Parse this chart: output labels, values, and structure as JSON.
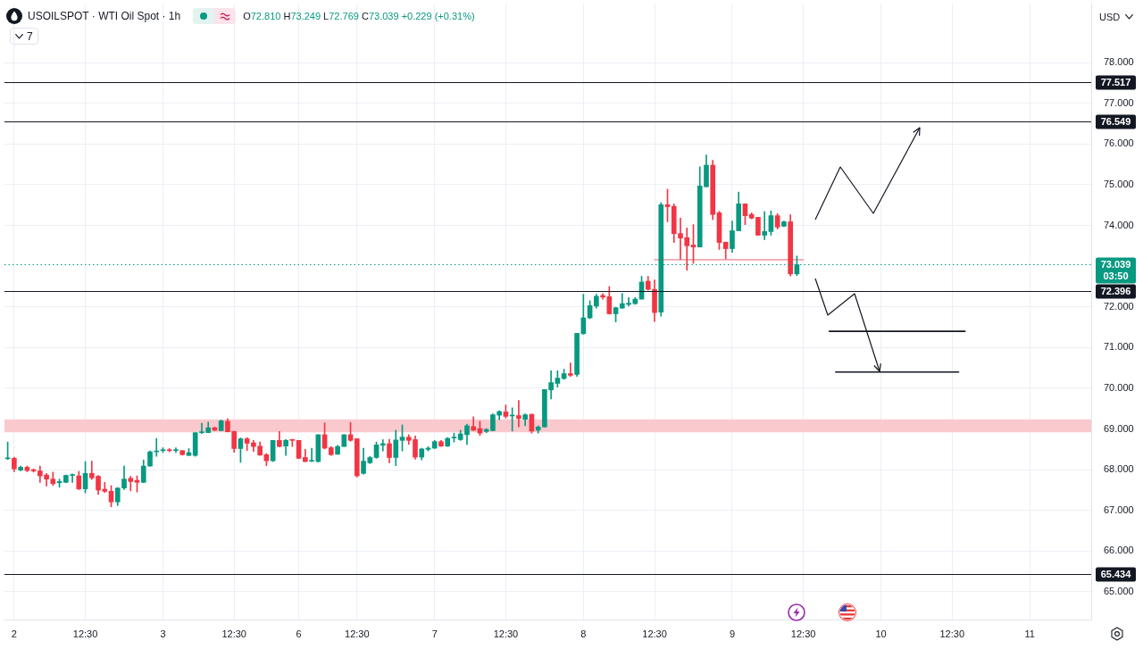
{
  "chart_data": {
    "type": "candlestick",
    "title": "USOILSPOT · WTI Oil Spot · 1h",
    "subtitle": "O72.810 H73.249 L72.769 C73.039 +0.229 (+0.31%)",
    "ylabel": "USD",
    "annotations": [
      "7"
    ],
    "categories": [
      null,
      "2",
      null,
      null,
      null,
      null,
      null,
      null,
      null,
      null,
      null,
      null,
      "12:30",
      null,
      null,
      null,
      null,
      null,
      null,
      null,
      null,
      null,
      null,
      null,
      "3",
      null,
      null,
      null,
      null,
      null,
      null,
      null,
      null,
      null,
      null,
      "12:30",
      null,
      null,
      null,
      null,
      null,
      null,
      null,
      null,
      null,
      "6",
      null,
      null,
      null,
      null,
      null,
      null,
      null,
      null,
      "12:30",
      null,
      null,
      null,
      null,
      null,
      null,
      null,
      null,
      null,
      null,
      null,
      "7",
      null,
      null,
      null,
      null,
      null,
      null,
      null,
      null,
      null,
      null,
      "12:30",
      null,
      null,
      null,
      null,
      null,
      null,
      null,
      null,
      null,
      null,
      null,
      "8",
      null,
      null,
      null,
      null,
      null,
      null,
      null,
      null,
      null,
      null,
      "12:30",
      null,
      null,
      null,
      null,
      null,
      null,
      null,
      null,
      null,
      null,
      null,
      "9",
      null,
      null,
      null,
      null,
      null,
      null,
      null,
      null,
      null,
      null,
      "12:30",
      null,
      null,
      null,
      null,
      null,
      null,
      null,
      null,
      null,
      null,
      null,
      "10",
      null,
      null,
      null,
      null,
      null,
      null,
      null,
      null,
      null,
      null,
      "12:30",
      null,
      null,
      null,
      null,
      null,
      null,
      null,
      null,
      null,
      null,
      null,
      "11",
      null,
      null,
      null,
      null,
      null,
      null,
      null,
      null,
      null
    ],
    "series": [
      {
        "type": "candlestick",
        "ohlc": [
          [
            68.27,
            68.68,
            68.25,
            68.29
          ],
          [
            68.28,
            68.31,
            67.95,
            68.02
          ],
          [
            67.99,
            68.09,
            67.97,
            68.06
          ],
          [
            68.06,
            68.09,
            67.95,
            67.98
          ],
          [
            68.0,
            68.02,
            67.94,
            67.97
          ],
          [
            67.97,
            68.09,
            67.69,
            67.85
          ],
          [
            67.87,
            67.91,
            67.6,
            67.77
          ],
          [
            67.77,
            67.94,
            67.61,
            67.66
          ],
          [
            67.68,
            67.77,
            67.57,
            67.71
          ],
          [
            67.69,
            67.87,
            67.68,
            67.86
          ],
          [
            67.86,
            67.9,
            67.69,
            67.87
          ],
          [
            67.85,
            67.96,
            67.51,
            67.53
          ],
          [
            67.53,
            68.2,
            67.43,
            67.91
          ],
          [
            67.91,
            68.21,
            67.76,
            67.8
          ],
          [
            67.84,
            67.86,
            67.39,
            67.5
          ],
          [
            67.52,
            67.69,
            67.44,
            67.47
          ],
          [
            67.47,
            67.61,
            67.09,
            67.21
          ],
          [
            67.21,
            67.56,
            67.12,
            67.55
          ],
          [
            67.55,
            68.09,
            67.51,
            67.77
          ],
          [
            67.79,
            67.84,
            67.48,
            67.71
          ],
          [
            67.74,
            67.85,
            67.45,
            67.69
          ],
          [
            67.69,
            68.24,
            67.68,
            68.09
          ],
          [
            68.09,
            68.46,
            68.08,
            68.44
          ],
          [
            68.44,
            68.77,
            68.33,
            68.45
          ],
          [
            68.47,
            68.54,
            68.42,
            68.48
          ],
          [
            68.48,
            68.52,
            68.44,
            68.47
          ],
          [
            68.47,
            68.54,
            68.42,
            68.48
          ],
          [
            68.47,
            68.47,
            68.36,
            68.37
          ],
          [
            68.35,
            68.52,
            68.35,
            68.42
          ],
          [
            68.35,
            68.91,
            68.33,
            68.91
          ],
          [
            68.91,
            69.14,
            68.89,
            68.92
          ],
          [
            68.91,
            69.17,
            68.91,
            69.03
          ],
          [
            69.03,
            69.05,
            68.96,
            68.97
          ],
          [
            68.96,
            69.22,
            68.96,
            69.2
          ],
          [
            69.19,
            69.25,
            68.93,
            68.93
          ],
          [
            68.94,
            68.95,
            68.43,
            68.52
          ],
          [
            68.52,
            68.78,
            68.18,
            68.76
          ],
          [
            68.76,
            68.79,
            68.47,
            68.65
          ],
          [
            68.66,
            68.72,
            68.45,
            68.57
          ],
          [
            68.58,
            68.68,
            68.35,
            68.36
          ],
          [
            68.37,
            68.4,
            68.1,
            68.22
          ],
          [
            68.22,
            68.72,
            68.2,
            68.72
          ],
          [
            68.72,
            68.94,
            68.56,
            68.57
          ],
          [
            68.58,
            68.74,
            68.35,
            68.72
          ],
          [
            68.73,
            68.75,
            68.57,
            68.72
          ],
          [
            68.72,
            68.72,
            68.27,
            68.28
          ],
          [
            68.3,
            68.5,
            68.2,
            68.2
          ],
          [
            68.21,
            68.53,
            68.2,
            68.22
          ],
          [
            68.2,
            68.86,
            68.19,
            68.86
          ],
          [
            68.86,
            69.15,
            68.51,
            68.53
          ],
          [
            68.54,
            68.57,
            68.35,
            68.37
          ],
          [
            68.38,
            68.6,
            68.38,
            68.57
          ],
          [
            68.57,
            68.86,
            68.57,
            68.86
          ],
          [
            68.86,
            69.16,
            68.7,
            68.72
          ],
          [
            68.76,
            68.76,
            67.82,
            67.85
          ],
          [
            67.91,
            68.53,
            67.89,
            68.21
          ],
          [
            68.17,
            68.33,
            68.15,
            68.3
          ],
          [
            68.3,
            68.68,
            68.28,
            68.61
          ],
          [
            68.6,
            68.74,
            68.46,
            68.64
          ],
          [
            68.64,
            68.75,
            68.17,
            68.3
          ],
          [
            68.3,
            68.97,
            68.1,
            68.73
          ],
          [
            68.72,
            69.1,
            68.46,
            68.8
          ],
          [
            68.8,
            68.86,
            68.62,
            68.72
          ],
          [
            68.74,
            68.83,
            68.26,
            68.31
          ],
          [
            68.31,
            68.53,
            68.24,
            68.51
          ],
          [
            68.5,
            68.57,
            68.46,
            68.53
          ],
          [
            68.53,
            68.72,
            68.52,
            68.69
          ],
          [
            68.69,
            68.72,
            68.57,
            68.58
          ],
          [
            68.58,
            68.79,
            68.57,
            68.77
          ],
          [
            68.78,
            68.9,
            68.68,
            68.79
          ],
          [
            68.74,
            68.97,
            68.72,
            68.88
          ],
          [
            68.86,
            69.12,
            68.62,
            69.08
          ],
          [
            69.06,
            69.3,
            68.96,
            68.97
          ],
          [
            69.01,
            69.19,
            68.84,
            68.9
          ],
          [
            68.94,
            69.01,
            68.91,
            68.99
          ],
          [
            68.96,
            69.37,
            68.96,
            69.35
          ],
          [
            69.34,
            69.45,
            69.23,
            69.43
          ],
          [
            69.42,
            69.59,
            69.27,
            69.31
          ],
          [
            69.32,
            69.52,
            68.95,
            69.33
          ],
          [
            69.33,
            69.7,
            69.05,
            69.26
          ],
          [
            69.24,
            69.37,
            69.08,
            69.35
          ],
          [
            69.36,
            69.37,
            68.9,
            68.95
          ],
          [
            68.97,
            69.08,
            68.9,
            69.05
          ],
          [
            69.05,
            69.97,
            69.05,
            69.97
          ],
          [
            69.96,
            70.43,
            69.74,
            70.14
          ],
          [
            70.12,
            70.43,
            70.03,
            70.25
          ],
          [
            70.24,
            70.47,
            70.22,
            70.36
          ],
          [
            70.36,
            70.62,
            70.29,
            70.32
          ],
          [
            70.34,
            71.35,
            70.29,
            71.35
          ],
          [
            71.34,
            72.31,
            71.33,
            71.73
          ],
          [
            71.73,
            72.15,
            71.71,
            72.03
          ],
          [
            72.02,
            72.31,
            71.97,
            72.26
          ],
          [
            72.28,
            72.33,
            72.19,
            72.24
          ],
          [
            72.25,
            72.5,
            71.82,
            71.83
          ],
          [
            71.83,
            71.99,
            71.63,
            71.98
          ],
          [
            71.97,
            72.33,
            71.96,
            72.08
          ],
          [
            72.06,
            72.23,
            72.02,
            72.09
          ],
          [
            72.08,
            72.23,
            72.06,
            72.19
          ],
          [
            72.19,
            72.75,
            72.19,
            72.61
          ],
          [
            72.63,
            72.75,
            72.41,
            72.43
          ],
          [
            72.43,
            72.66,
            71.64,
            71.86
          ],
          [
            71.87,
            74.56,
            71.77,
            74.51
          ],
          [
            74.51,
            74.89,
            74.09,
            74.46
          ],
          [
            74.47,
            74.53,
            73.58,
            73.8
          ],
          [
            73.8,
            74.18,
            73.17,
            73.69
          ],
          [
            73.7,
            73.94,
            72.9,
            73.5
          ],
          [
            73.52,
            74.02,
            73.07,
            73.47
          ],
          [
            73.47,
            75.44,
            73.47,
            74.97
          ],
          [
            74.95,
            75.73,
            74.95,
            75.48
          ],
          [
            75.48,
            75.6,
            74.14,
            74.27
          ],
          [
            74.31,
            74.35,
            73.41,
            73.58
          ],
          [
            73.59,
            73.59,
            73.18,
            73.43
          ],
          [
            73.43,
            74.11,
            73.34,
            73.87
          ],
          [
            73.87,
            74.82,
            73.87,
            74.53
          ],
          [
            74.53,
            74.53,
            74.02,
            74.24
          ],
          [
            74.27,
            74.31,
            74.16,
            74.18
          ],
          [
            74.2,
            74.2,
            73.76,
            73.76
          ],
          [
            73.76,
            74.34,
            73.65,
            73.85
          ],
          [
            73.85,
            74.36,
            73.76,
            74.24
          ],
          [
            74.24,
            74.29,
            73.91,
            73.96
          ],
          [
            73.98,
            74.11,
            73.97,
            74.09
          ],
          [
            74.09,
            74.26,
            72.76,
            72.81
          ],
          [
            72.81,
            73.249,
            72.769,
            73.039
          ],
          null,
          null,
          null,
          null,
          null,
          null,
          null,
          null,
          null,
          null,
          null,
          null,
          null,
          null,
          null,
          null,
          null,
          null,
          null,
          null,
          null,
          null,
          null,
          null,
          null,
          null,
          null,
          null,
          null,
          null,
          null,
          null,
          null,
          null,
          null,
          null,
          null,
          null,
          null,
          null,
          null,
          null,
          null,
          null,
          null
        ],
        "colors": [
          "#089981",
          "#f23645",
          "#089981",
          "#f23645",
          "#f23645",
          "#f23645",
          "#f23645",
          "#f23645",
          "#089981",
          "#089981",
          "#089981",
          "#f23645",
          "#089981",
          "#f23645",
          "#f23645",
          "#f23645",
          "#f23645",
          "#089981",
          "#089981",
          "#f23645",
          "#f23645",
          "#089981",
          "#089981",
          "#089981",
          "#089981",
          "#f23645",
          "#089981",
          "#f23645",
          "#089981",
          "#089981",
          "#089981",
          "#089981",
          "#f23645",
          "#089981",
          "#f23645",
          "#f23645",
          "#089981",
          "#f23645",
          "#f23645",
          "#f23645",
          "#f23645",
          "#089981",
          "#f23645",
          "#089981",
          "#f23645",
          "#f23645",
          "#f23645",
          "#089981",
          "#089981",
          "#f23645",
          "#f23645",
          "#089981",
          "#089981",
          "#f23645",
          "#f23645",
          "#089981",
          "#089981",
          "#089981",
          "#089981",
          "#f23645",
          "#089981",
          "#089981",
          "#f23645",
          "#f23645",
          "#089981",
          "#089981",
          "#089981",
          "#f23645",
          "#089981",
          "#089981",
          "#089981",
          "#089981",
          "#f23645",
          "#f23645",
          "#089981",
          "#089981",
          "#089981",
          "#f23645",
          "#089981",
          "#f23645",
          "#089981",
          "#f23645",
          "#089981",
          "#089981",
          "#089981",
          "#089981",
          "#089981",
          "#f23645",
          "#089981",
          "#089981",
          "#089981",
          "#089981",
          "#f23645",
          "#f23645",
          "#089981",
          "#089981",
          "#089981",
          "#089981",
          "#089981",
          "#f23645",
          "#f23645",
          "#089981",
          "#f23645",
          "#f23645",
          "#f23645",
          "#f23645",
          "#f23645",
          "#089981",
          "#089981",
          "#f23645",
          "#f23645",
          "#f23645",
          "#089981",
          "#089981",
          "#f23645",
          "#f23645",
          "#f23645",
          "#089981",
          "#089981",
          "#f23645",
          "#089981",
          "#f23645",
          "#089981",
          null,
          null,
          null,
          null,
          null,
          null,
          null,
          null,
          null,
          null,
          null,
          null,
          null,
          null,
          null,
          null,
          null,
          null,
          null,
          null,
          null,
          null,
          null,
          null,
          null,
          null,
          null,
          null,
          null,
          null,
          null,
          null,
          null,
          null,
          null,
          null,
          null,
          null,
          null,
          null,
          null,
          null,
          null,
          null,
          null
        ]
      },
      {
        "type": "line",
        "color": "#f4a7ae",
        "values": [
          null,
          null,
          null,
          null,
          null,
          null,
          null,
          null,
          null,
          null,
          null,
          null,
          null,
          null,
          null,
          null,
          null,
          null,
          null,
          null,
          null,
          null,
          null,
          null,
          null,
          null,
          null,
          null,
          null,
          null,
          null,
          null,
          null,
          null,
          null,
          null,
          null,
          null,
          null,
          null,
          null,
          null,
          null,
          null,
          null,
          null,
          null,
          null,
          null,
          null,
          null,
          null,
          null,
          null,
          null,
          null,
          null,
          null,
          null,
          null,
          null,
          null,
          null,
          null,
          null,
          null,
          null,
          null,
          null,
          null,
          null,
          null,
          null,
          null,
          null,
          null,
          null,
          null,
          null,
          null,
          null,
          null,
          null,
          null,
          null,
          null,
          null,
          null,
          null,
          null,
          null,
          null,
          null,
          null,
          null,
          null,
          null,
          null,
          null,
          null,
          73.16,
          73.16,
          73.16,
          73.16,
          73.16,
          73.16,
          73.16,
          73.16,
          73.16,
          73.16,
          73.16,
          73.16,
          73.16,
          73.16,
          73.16,
          73.16,
          73.16,
          73.16,
          73.16,
          73.16,
          73.16,
          73.16,
          73.16,
          73.16,
          null,
          null,
          null,
          null,
          null,
          null,
          null,
          null,
          null,
          null,
          null,
          null,
          null,
          null,
          null,
          null,
          null,
          null,
          null,
          null,
          null,
          null,
          null,
          null,
          null,
          null,
          null,
          null,
          null,
          null,
          null,
          null,
          null,
          null,
          null,
          null,
          null,
          null,
          null,
          null,
          null,
          null,
          null,
          null
        ]
      },
      {
        "type": "line",
        "color": "#131722",
        "values": [
          null,
          null,
          null,
          null,
          null,
          null,
          null,
          null,
          null,
          null,
          null,
          null,
          null,
          null,
          null,
          null,
          null,
          null,
          null,
          null,
          null,
          null,
          null,
          null,
          null,
          null,
          null,
          null,
          null,
          null,
          null,
          null,
          null,
          null,
          null,
          null,
          null,
          null,
          null,
          null,
          null,
          null,
          null,
          null,
          null,
          null,
          null,
          null,
          null,
          null,
          null,
          null,
          null,
          null,
          null,
          null,
          null,
          null,
          null,
          null,
          null,
          null,
          null,
          null,
          null,
          null,
          null,
          null,
          null,
          null,
          null,
          null,
          null,
          null,
          null,
          null,
          null,
          null,
          null,
          null,
          null,
          null,
          null,
          null,
          null,
          null,
          null,
          null,
          null,
          null,
          null,
          null,
          null,
          null,
          null,
          null,
          null,
          null,
          null,
          null,
          null,
          null,
          null,
          null,
          null,
          null,
          null,
          null,
          null,
          null,
          null,
          null,
          null,
          null,
          null,
          null,
          null,
          null,
          null,
          null,
          null,
          null,
          null,
          null,
          null,
          null,
          null,
          71.4,
          71.4,
          71.4,
          71.4,
          71.4,
          71.4,
          71.4,
          71.4,
          71.4,
          71.4,
          71.4,
          71.4,
          71.4,
          71.4,
          71.4,
          71.4,
          71.4,
          71.4,
          71.4,
          71.4,
          71.4,
          71.4,
          null,
          null,
          null,
          null,
          null,
          null,
          null,
          null,
          null,
          null,
          null,
          null,
          null,
          null,
          null,
          null,
          null,
          null,
          null
        ]
      },
      {
        "type": "line",
        "color": "#131722",
        "values": [
          null,
          null,
          null,
          null,
          null,
          null,
          null,
          null,
          null,
          null,
          null,
          null,
          null,
          null,
          null,
          null,
          null,
          null,
          null,
          null,
          null,
          null,
          null,
          null,
          null,
          null,
          null,
          null,
          null,
          null,
          null,
          null,
          null,
          null,
          null,
          null,
          null,
          null,
          null,
          null,
          null,
          null,
          null,
          null,
          null,
          null,
          null,
          null,
          null,
          null,
          null,
          null,
          null,
          null,
          null,
          null,
          null,
          null,
          null,
          null,
          null,
          null,
          null,
          null,
          null,
          null,
          null,
          null,
          null,
          null,
          null,
          null,
          null,
          null,
          null,
          null,
          null,
          null,
          null,
          null,
          null,
          null,
          null,
          null,
          null,
          null,
          null,
          null,
          null,
          null,
          null,
          null,
          null,
          null,
          null,
          null,
          null,
          null,
          null,
          null,
          null,
          null,
          null,
          null,
          null,
          null,
          null,
          null,
          null,
          null,
          null,
          null,
          null,
          null,
          null,
          null,
          null,
          null,
          null,
          null,
          null,
          null,
          null,
          null,
          null,
          null,
          null,
          null,
          70.4,
          70.4,
          70.4,
          70.4,
          70.4,
          70.4,
          70.4,
          70.4,
          70.4,
          70.4,
          70.4,
          70.4,
          70.4,
          70.4,
          70.4,
          70.4,
          70.4,
          70.4,
          70.4,
          70.4,
          null,
          null,
          null,
          null,
          null,
          null,
          null,
          null,
          null,
          null,
          null,
          null,
          null,
          null,
          null,
          null,
          null,
          null,
          null,
          null
        ]
      }
    ],
    "ylim": [
      64.32,
      79.45
    ],
    "yticks": [
      {
        "value": 65,
        "label": "65.000"
      },
      {
        "value": 66,
        "label": "66.000"
      },
      {
        "value": 67,
        "label": "67.000"
      },
      {
        "value": 68,
        "label": "68.000"
      },
      {
        "value": 69,
        "label": "69.000"
      },
      {
        "value": 70,
        "label": "70.000"
      },
      {
        "value": 71,
        "label": "71.000"
      },
      {
        "value": 72,
        "label": "72.000"
      },
      {
        "value": 74,
        "label": "74.000"
      },
      {
        "value": 75,
        "label": "75.000"
      },
      {
        "value": 76,
        "label": "76.000"
      },
      {
        "value": 77,
        "label": "77.000"
      },
      {
        "value": 78,
        "label": "78.000"
      }
    ],
    "ref_lines": [
      {
        "axis": "y",
        "value": 77.517,
        "label": "77.517",
        "color": "#131722"
      },
      {
        "axis": "y",
        "value": 76.549,
        "label": "76.549",
        "color": "#131722"
      },
      {
        "axis": "y",
        "value": 72.396,
        "label": "72.396",
        "color": "#131722"
      },
      {
        "axis": "y",
        "value": 65.434,
        "label": "65.434",
        "color": "#131722"
      },
      {
        "axis": "y",
        "value": 73.039,
        "label": "73.039\n03:50",
        "color": "#089981",
        "line_style": "dotted"
      }
    ],
    "bands": [
      {
        "axis": "y",
        "from": 68.92,
        "to": 69.24,
        "color": "#f9c9cd"
      }
    ],
    "grid": true
  }
}
